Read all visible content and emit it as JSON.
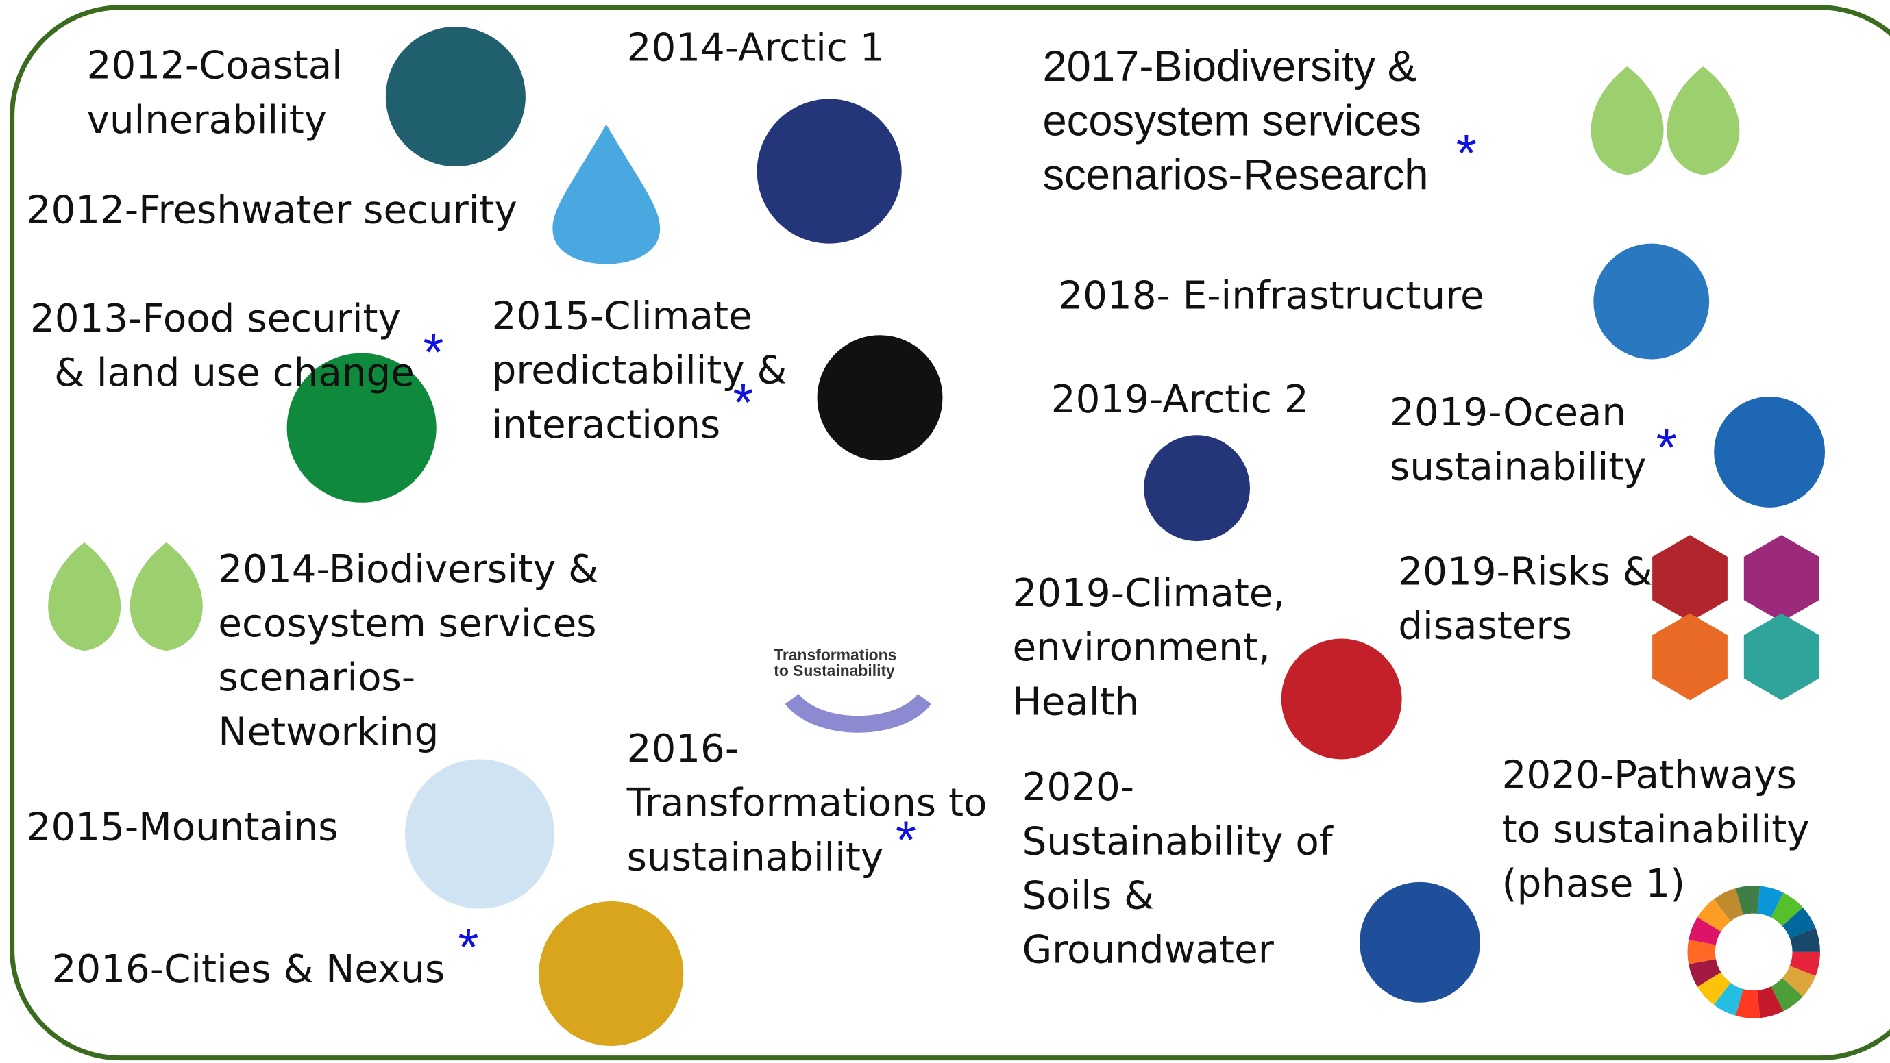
{
  "items": [
    {
      "lines": [
        "2012-Coastal",
        "vulnerability"
      ]
    },
    {
      "lines": [
        "2014-Arctic 1"
      ]
    },
    {
      "lines": [
        "2017-Biodiversity &",
        "ecosystem services",
        "scenarios-Research"
      ],
      "asterisk": "*"
    },
    {
      "lines": [
        "2012-Freshwater security"
      ]
    },
    {
      "lines": [
        "2018- E-infrastructure"
      ]
    },
    {
      "lines": [
        "2013-Food security",
        "& land use change"
      ],
      "asterisk": "*"
    },
    {
      "lines": [
        "2015-Climate",
        "predictability &",
        "interactions"
      ],
      "asterisk": "*"
    },
    {
      "lines": [
        "2019-Arctic 2"
      ]
    },
    {
      "lines": [
        "2019-Ocean",
        "sustainability"
      ],
      "asterisk": "*"
    },
    {
      "lines": [
        "2014-Biodiversity &",
        "ecosystem services",
        "scenarios-",
        "Networking"
      ]
    },
    {
      "lines": [
        "2019-Risks &",
        "disasters"
      ]
    },
    {
      "lines": [
        "2019-Climate,",
        "environment,",
        "Health"
      ]
    },
    {
      "lines": [
        "2016-",
        "Transformations to",
        "sustainability"
      ],
      "asterisk": "*"
    },
    {
      "lines": [
        "2020-",
        "Sustainability of",
        "Soils &",
        "Groundwater"
      ]
    },
    {
      "lines": [
        "2020-Pathways",
        "to sustainability",
        "(phase 1)"
      ]
    },
    {
      "lines": [
        "2015-Mountains"
      ]
    },
    {
      "lines": [
        "2016-Cities & Nexus"
      ],
      "asterisk": "*"
    }
  ],
  "logo_text": [
    "Transformations",
    "to Sustainability"
  ]
}
